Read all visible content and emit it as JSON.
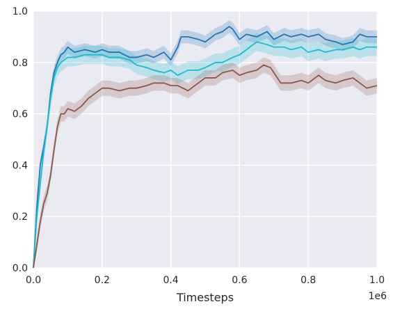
{
  "chart_data": {
    "type": "line",
    "xlabel": "Timesteps",
    "ylabel": "",
    "x_offset_text": "1e6",
    "xlim": [
      0,
      1.0
    ],
    "ylim": [
      0,
      1.0
    ],
    "x_scale_multiplier": 1000000,
    "xticks": [
      "0.0",
      "0.2",
      "0.4",
      "0.6",
      "0.8",
      "1.0"
    ],
    "yticks": [
      "0.0",
      "0.2",
      "0.4",
      "0.6",
      "0.8",
      "1.0"
    ],
    "grid": true,
    "legend": "none",
    "background": "#eaeaf2",
    "series": [
      {
        "color": "#1f77b4",
        "x": [
          0.0,
          0.01,
          0.02,
          0.03,
          0.04,
          0.05,
          0.06,
          0.07,
          0.08,
          0.09,
          0.1,
          0.12,
          0.15,
          0.18,
          0.2,
          0.22,
          0.25,
          0.28,
          0.3,
          0.33,
          0.35,
          0.38,
          0.4,
          0.42,
          0.43,
          0.45,
          0.48,
          0.5,
          0.53,
          0.55,
          0.57,
          0.58,
          0.6,
          0.62,
          0.65,
          0.68,
          0.7,
          0.73,
          0.75,
          0.78,
          0.8,
          0.83,
          0.85,
          0.88,
          0.9,
          0.93,
          0.95,
          0.97,
          1.0
        ],
        "y": [
          0.0,
          0.24,
          0.4,
          0.47,
          0.55,
          0.68,
          0.76,
          0.8,
          0.83,
          0.84,
          0.86,
          0.84,
          0.85,
          0.84,
          0.85,
          0.84,
          0.84,
          0.82,
          0.82,
          0.83,
          0.82,
          0.84,
          0.81,
          0.86,
          0.9,
          0.9,
          0.89,
          0.88,
          0.91,
          0.92,
          0.94,
          0.93,
          0.89,
          0.91,
          0.9,
          0.92,
          0.89,
          0.91,
          0.9,
          0.91,
          0.9,
          0.91,
          0.89,
          0.88,
          0.87,
          0.88,
          0.91,
          0.9,
          0.9
        ],
        "band": 0.025
      },
      {
        "color": "#17becf",
        "x": [
          0.0,
          0.01,
          0.02,
          0.03,
          0.04,
          0.05,
          0.06,
          0.07,
          0.08,
          0.1,
          0.12,
          0.15,
          0.18,
          0.2,
          0.22,
          0.25,
          0.28,
          0.3,
          0.33,
          0.35,
          0.38,
          0.4,
          0.42,
          0.45,
          0.48,
          0.5,
          0.53,
          0.55,
          0.58,
          0.6,
          0.62,
          0.65,
          0.68,
          0.7,
          0.73,
          0.75,
          0.78,
          0.8,
          0.83,
          0.85,
          0.88,
          0.9,
          0.93,
          0.95,
          0.97,
          1.0
        ],
        "y": [
          0.0,
          0.2,
          0.33,
          0.45,
          0.55,
          0.66,
          0.74,
          0.78,
          0.8,
          0.82,
          0.82,
          0.83,
          0.83,
          0.83,
          0.82,
          0.82,
          0.81,
          0.79,
          0.78,
          0.77,
          0.76,
          0.77,
          0.75,
          0.77,
          0.77,
          0.78,
          0.8,
          0.8,
          0.82,
          0.83,
          0.85,
          0.88,
          0.87,
          0.86,
          0.86,
          0.85,
          0.86,
          0.84,
          0.85,
          0.84,
          0.85,
          0.85,
          0.86,
          0.85,
          0.86,
          0.86
        ],
        "band": 0.035
      },
      {
        "color": "#8c564b",
        "x": [
          0.0,
          0.01,
          0.02,
          0.03,
          0.04,
          0.05,
          0.06,
          0.07,
          0.08,
          0.09,
          0.1,
          0.12,
          0.14,
          0.16,
          0.18,
          0.2,
          0.22,
          0.25,
          0.28,
          0.3,
          0.33,
          0.35,
          0.38,
          0.4,
          0.42,
          0.45,
          0.48,
          0.5,
          0.53,
          0.55,
          0.58,
          0.6,
          0.62,
          0.65,
          0.67,
          0.69,
          0.7,
          0.72,
          0.75,
          0.78,
          0.8,
          0.83,
          0.85,
          0.88,
          0.9,
          0.93,
          0.95,
          0.97,
          1.0
        ],
        "y": [
          0.0,
          0.09,
          0.18,
          0.25,
          0.29,
          0.36,
          0.46,
          0.55,
          0.6,
          0.6,
          0.62,
          0.61,
          0.63,
          0.66,
          0.68,
          0.7,
          0.7,
          0.69,
          0.7,
          0.7,
          0.71,
          0.72,
          0.72,
          0.71,
          0.71,
          0.69,
          0.72,
          0.74,
          0.74,
          0.76,
          0.77,
          0.75,
          0.76,
          0.77,
          0.79,
          0.78,
          0.76,
          0.72,
          0.72,
          0.73,
          0.72,
          0.75,
          0.73,
          0.72,
          0.73,
          0.74,
          0.72,
          0.7,
          0.71
        ],
        "band": 0.03
      }
    ]
  }
}
